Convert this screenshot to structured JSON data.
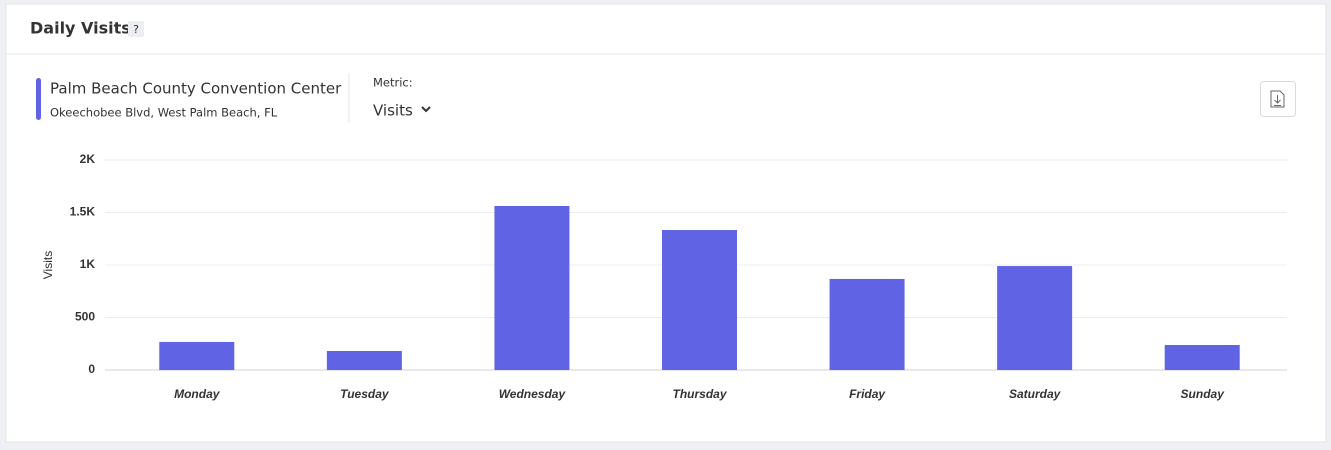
{
  "header": {
    "title": "Daily Visits",
    "help": "?"
  },
  "venue": {
    "name": "Palm Beach County Convention Center",
    "address": "Okeechobee Blvd, West Palm Beach, FL"
  },
  "metric": {
    "label": "Metric:",
    "value": "Visits"
  },
  "chart_data": {
    "type": "bar",
    "ylabel": "Visits",
    "categories": [
      "Monday",
      "Tuesday",
      "Wednesday",
      "Thursday",
      "Friday",
      "Saturday",
      "Sunday"
    ],
    "values": [
      267,
      181,
      1562,
      1333,
      867,
      990,
      238
    ],
    "color": "#6063e3",
    "ylim": [
      0,
      2000
    ],
    "yticks": [
      0,
      500,
      {
        "value": 1000,
        "label": "1K"
      },
      {
        "value": 1500,
        "label": "1.5K"
      },
      {
        "value": 2000,
        "label": "2K"
      }
    ],
    "grid": true
  }
}
